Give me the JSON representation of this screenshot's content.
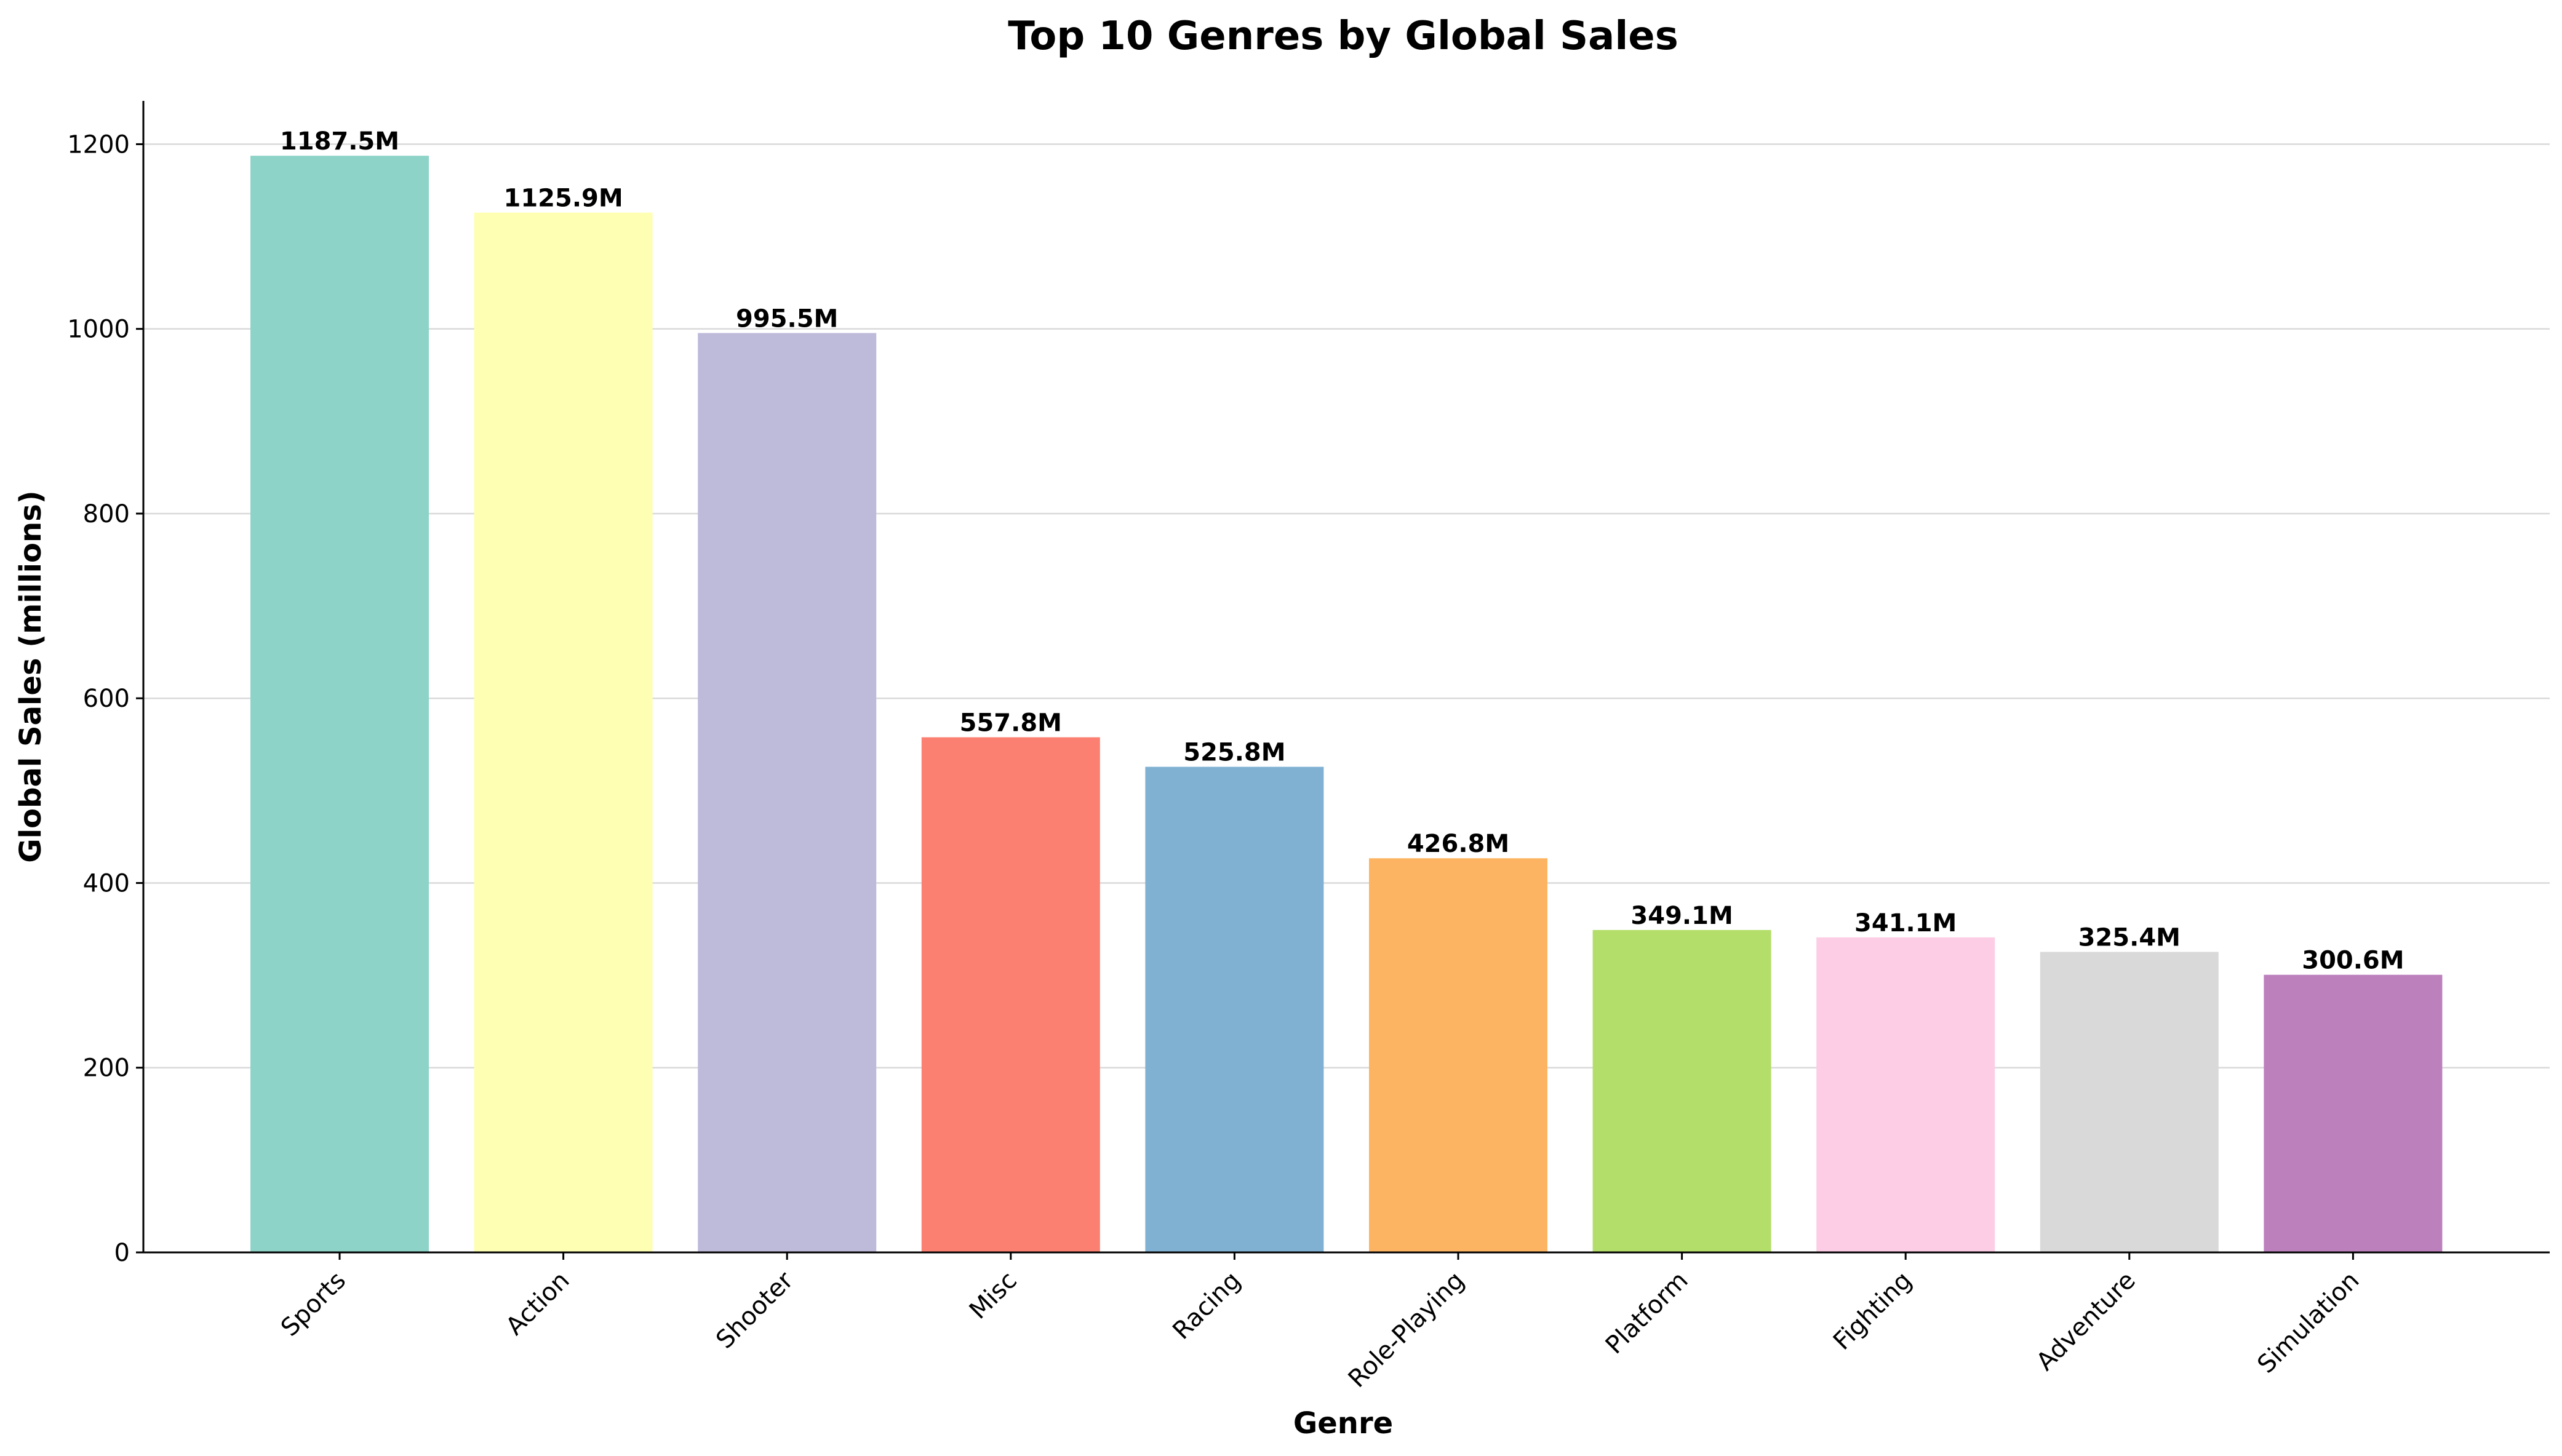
{
  "chart_data": {
    "type": "bar",
    "title": "Top 10 Genres by Global Sales",
    "xlabel": "Genre",
    "ylabel": "Global Sales (millions)",
    "categories": [
      "Sports",
      "Action",
      "Shooter",
      "Misc",
      "Racing",
      "Role-Playing",
      "Platform",
      "Fighting",
      "Adventure",
      "Simulation"
    ],
    "values": [
      1187.5,
      1125.9,
      995.5,
      557.8,
      525.8,
      426.8,
      349.1,
      341.1,
      325.4,
      300.6
    ],
    "data_labels": [
      "1187.5M",
      "1125.9M",
      "995.5M",
      "557.8M",
      "525.8M",
      "426.8M",
      "349.1M",
      "341.1M",
      "325.4M",
      "300.6M"
    ],
    "colors": [
      "#8dd3c7",
      "#ffffb3",
      "#bebada",
      "#fb8072",
      "#80b1d3",
      "#fdb462",
      "#b3de69",
      "#fccde5",
      "#d9d9d9",
      "#bc80bd"
    ],
    "ylim": [
      0,
      1246.9
    ],
    "yticks": [
      0,
      200,
      400,
      600,
      800,
      1000,
      1200
    ],
    "grid": "y",
    "legend": "none"
  }
}
